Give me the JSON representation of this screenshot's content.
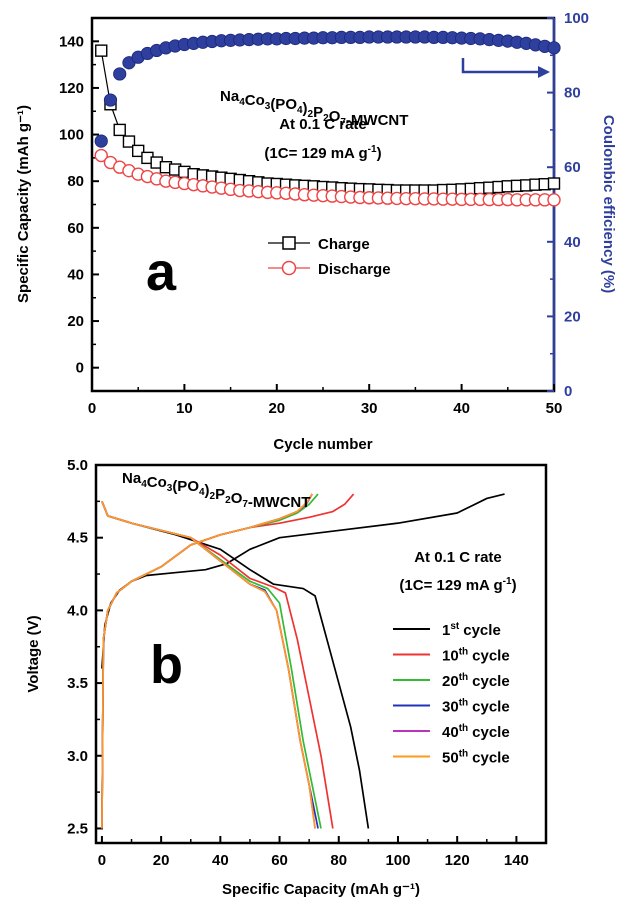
{
  "chart_data": [
    {
      "panel": "a",
      "type": "scatter",
      "xlabel": "Cycle number",
      "ylabel": "Specific Capacity (mAh g⁻¹)",
      "y2label": "Coulombic efficiency (%)",
      "xlim": [
        0,
        50
      ],
      "ylim": [
        -10,
        150
      ],
      "y2lim": [
        0,
        100
      ],
      "xticks": [
        "0",
        "10",
        "20",
        "30",
        "40",
        "50"
      ],
      "yticks": [
        "0",
        "20",
        "40",
        "60",
        "80",
        "100",
        "120",
        "140"
      ],
      "y2ticks": [
        "0",
        "20",
        "40",
        "60",
        "80",
        "100"
      ],
      "annotations": {
        "material_prefix": "Na",
        "material_parts": [
          {
            "t": "Na",
            "s": "4"
          },
          {
            "t": "Co",
            "s": "3"
          },
          {
            "t": "(PO",
            "s": "4"
          },
          {
            "t": ")",
            "s": "2"
          },
          {
            "t": "P",
            "s": "2"
          },
          {
            "t": "O",
            "s": "7"
          },
          {
            "t": "-MWCNT",
            "s": ""
          }
        ],
        "rate": "At 0.1 C rate",
        "rate_def": "(1C= 129 mA g",
        "rate_def_sup": "-1",
        "rate_def_end": ")"
      },
      "series": [
        {
          "name": "Charge",
          "marker": "open-square",
          "color": "#000000",
          "x": [
            1,
            2,
            3,
            4,
            5,
            6,
            7,
            8,
            9,
            10,
            11,
            12,
            13,
            14,
            15,
            16,
            17,
            18,
            19,
            20,
            21,
            22,
            23,
            24,
            25,
            26,
            27,
            28,
            29,
            30,
            31,
            32,
            33,
            34,
            35,
            36,
            37,
            38,
            39,
            40,
            41,
            42,
            43,
            44,
            45,
            46,
            47,
            48,
            49,
            50
          ],
          "values": [
            136,
            113,
            102,
            97,
            93,
            90,
            88,
            86,
            85,
            84,
            83,
            82.5,
            82,
            81.5,
            81,
            80.5,
            80,
            79.5,
            79,
            78.8,
            78.5,
            78.2,
            78,
            77.8,
            77.5,
            77.3,
            77,
            76.8,
            76.6,
            76.5,
            76.3,
            76.2,
            76,
            76,
            76,
            76,
            76,
            76.2,
            76.3,
            76.5,
            76.7,
            77,
            77.2,
            77.5,
            77.8,
            78,
            78.2,
            78.5,
            78.7,
            79
          ]
        },
        {
          "name": "Discharge",
          "marker": "open-circle",
          "color": "#ee4444",
          "x": [
            1,
            2,
            3,
            4,
            5,
            6,
            7,
            8,
            9,
            10,
            11,
            12,
            13,
            14,
            15,
            16,
            17,
            18,
            19,
            20,
            21,
            22,
            23,
            24,
            25,
            26,
            27,
            28,
            29,
            30,
            31,
            32,
            33,
            34,
            35,
            36,
            37,
            38,
            39,
            40,
            41,
            42,
            43,
            44,
            45,
            46,
            47,
            48,
            49,
            50
          ],
          "values": [
            91,
            88,
            86,
            84.5,
            83,
            82,
            81,
            80,
            79.5,
            79,
            78.5,
            78,
            77.5,
            77,
            76.5,
            76,
            75.8,
            75.5,
            75.2,
            75,
            74.8,
            74.5,
            74.2,
            74,
            73.8,
            73.6,
            73.4,
            73.2,
            73,
            72.9,
            72.8,
            72.7,
            72.6,
            72.5,
            72.5,
            72.4,
            72.4,
            72.3,
            72.3,
            72.2,
            72.2,
            72.2,
            72.1,
            72.1,
            72.1,
            72,
            72,
            72,
            72,
            72
          ]
        },
        {
          "name": "Coulombic efficiency",
          "axis": "right",
          "marker": "filled-circle",
          "color": "#2e3f9e",
          "x": [
            1,
            2,
            3,
            4,
            5,
            6,
            7,
            8,
            9,
            10,
            11,
            12,
            13,
            14,
            15,
            16,
            17,
            18,
            19,
            20,
            21,
            22,
            23,
            24,
            25,
            26,
            27,
            28,
            29,
            30,
            31,
            32,
            33,
            34,
            35,
            36,
            37,
            38,
            39,
            40,
            41,
            42,
            43,
            44,
            45,
            46,
            47,
            48,
            49,
            50
          ],
          "values": [
            67,
            78,
            85,
            88,
            89.5,
            90.5,
            91.3,
            92,
            92.5,
            92.9,
            93.2,
            93.5,
            93.7,
            93.9,
            94,
            94.1,
            94.2,
            94.3,
            94.4,
            94.4,
            94.5,
            94.5,
            94.6,
            94.6,
            94.7,
            94.7,
            94.8,
            94.8,
            94.8,
            94.9,
            94.9,
            94.9,
            94.9,
            94.9,
            94.9,
            94.9,
            94.8,
            94.8,
            94.7,
            94.6,
            94.5,
            94.4,
            94.2,
            94,
            93.8,
            93.5,
            93.2,
            92.8,
            92.4,
            92
          ]
        }
      ]
    },
    {
      "panel": "b",
      "type": "line",
      "xlabel": "Specific Capacity (mAh g⁻¹)",
      "ylabel": "Voltage (V)",
      "xlim": [
        -2,
        150
      ],
      "ylim": [
        2.4,
        5.0
      ],
      "xticks": [
        "0",
        "20",
        "40",
        "60",
        "80",
        "100",
        "120",
        "140"
      ],
      "yticks": [
        "2.5",
        "3.0",
        "3.5",
        "4.0",
        "4.5",
        "5.0"
      ],
      "annotations": {
        "rate": "At 0.1 C rate",
        "rate_def": "(1C= 129 mA g",
        "rate_def_sup": "-1",
        "rate_def_end": ")"
      },
      "series": [
        {
          "name": "1st cycle",
          "label_num": "1",
          "label_sup": "st",
          "label_rest": "cycle",
          "color": "#000000",
          "charge": [
            [
              0,
              3.6
            ],
            [
              1,
              3.9
            ],
            [
              3,
              4.05
            ],
            [
              6,
              4.14
            ],
            [
              10,
              4.2
            ],
            [
              15,
              4.24
            ],
            [
              25,
              4.26
            ],
            [
              35,
              4.28
            ],
            [
              42,
              4.32
            ],
            [
              50,
              4.42
            ],
            [
              60,
              4.5
            ],
            [
              80,
              4.55
            ],
            [
              100,
              4.6
            ],
            [
              120,
              4.67
            ],
            [
              125,
              4.72
            ],
            [
              130,
              4.77
            ],
            [
              136,
              4.8
            ]
          ],
          "discharge": [
            [
              0,
              4.75
            ],
            [
              2,
              4.65
            ],
            [
              10,
              4.6
            ],
            [
              25,
              4.52
            ],
            [
              40,
              4.42
            ],
            [
              50,
              4.28
            ],
            [
              58,
              4.18
            ],
            [
              68,
              4.15
            ],
            [
              72,
              4.1
            ],
            [
              76,
              3.8
            ],
            [
              80,
              3.5
            ],
            [
              84,
              3.2
            ],
            [
              87,
              2.9
            ],
            [
              90,
              2.5
            ]
          ]
        },
        {
          "name": "10th cycle",
          "label_num": "10",
          "label_sup": "th",
          "label_rest": "cycle",
          "color": "#ee3333",
          "charge": [
            [
              0,
              2.5
            ],
            [
              0.5,
              3.8
            ],
            [
              2,
              4.0
            ],
            [
              5,
              4.12
            ],
            [
              10,
              4.2
            ],
            [
              20,
              4.3
            ],
            [
              30,
              4.45
            ],
            [
              40,
              4.52
            ],
            [
              50,
              4.57
            ],
            [
              60,
              4.6
            ],
            [
              70,
              4.64
            ],
            [
              78,
              4.68
            ],
            [
              82,
              4.73
            ],
            [
              85,
              4.8
            ]
          ],
          "discharge": [
            [
              0,
              4.75
            ],
            [
              2,
              4.65
            ],
            [
              10,
              4.6
            ],
            [
              20,
              4.55
            ],
            [
              30,
              4.5
            ],
            [
              40,
              4.38
            ],
            [
              50,
              4.22
            ],
            [
              58,
              4.16
            ],
            [
              62,
              4.12
            ],
            [
              66,
              3.8
            ],
            [
              70,
              3.4
            ],
            [
              74,
              3.0
            ],
            [
              78,
              2.5
            ]
          ]
        },
        {
          "name": "20th cycle",
          "label_num": "20",
          "label_sup": "th",
          "label_rest": "cycle",
          "color": "#33bb33",
          "charge": [
            [
              0,
              2.5
            ],
            [
              0.5,
              3.8
            ],
            [
              2,
              4.0
            ],
            [
              5,
              4.12
            ],
            [
              10,
              4.2
            ],
            [
              20,
              4.3
            ],
            [
              30,
              4.45
            ],
            [
              40,
              4.52
            ],
            [
              50,
              4.57
            ],
            [
              60,
              4.62
            ],
            [
              66,
              4.67
            ],
            [
              70,
              4.73
            ],
            [
              73,
              4.8
            ]
          ],
          "discharge": [
            [
              0,
              4.75
            ],
            [
              2,
              4.65
            ],
            [
              10,
              4.6
            ],
            [
              20,
              4.55
            ],
            [
              30,
              4.5
            ],
            [
              40,
              4.35
            ],
            [
              50,
              4.2
            ],
            [
              56,
              4.15
            ],
            [
              60,
              4.05
            ],
            [
              64,
              3.6
            ],
            [
              68,
              3.1
            ],
            [
              71,
              2.8
            ],
            [
              74,
              2.5
            ]
          ]
        },
        {
          "name": "30th cycle",
          "label_num": "30",
          "label_sup": "th",
          "label_rest": "cycle",
          "color": "#2233bb",
          "charge": [
            [
              0,
              2.5
            ],
            [
              0.5,
              3.8
            ],
            [
              2,
              4.0
            ],
            [
              5,
              4.12
            ],
            [
              10,
              4.2
            ],
            [
              20,
              4.3
            ],
            [
              30,
              4.45
            ],
            [
              40,
              4.52
            ],
            [
              50,
              4.57
            ],
            [
              60,
              4.63
            ],
            [
              66,
              4.68
            ],
            [
              69,
              4.73
            ],
            [
              71,
              4.8
            ]
          ],
          "discharge": [
            [
              0,
              4.75
            ],
            [
              2,
              4.65
            ],
            [
              10,
              4.6
            ],
            [
              20,
              4.55
            ],
            [
              30,
              4.5
            ],
            [
              40,
              4.34
            ],
            [
              50,
              4.18
            ],
            [
              55,
              4.14
            ],
            [
              59,
              4.0
            ],
            [
              63,
              3.6
            ],
            [
              67,
              3.1
            ],
            [
              70,
              2.8
            ],
            [
              73,
              2.5
            ]
          ]
        },
        {
          "name": "40th cycle",
          "label_num": "40",
          "label_sup": "th",
          "label_rest": "cycle",
          "color": "#bb33bb",
          "charge": [
            [
              0,
              2.5
            ],
            [
              0.5,
              3.8
            ],
            [
              2,
              4.0
            ],
            [
              5,
              4.12
            ],
            [
              10,
              4.2
            ],
            [
              20,
              4.3
            ],
            [
              30,
              4.45
            ],
            [
              40,
              4.52
            ],
            [
              50,
              4.57
            ],
            [
              60,
              4.63
            ],
            [
              66,
              4.68
            ],
            [
              69,
              4.73
            ],
            [
              71,
              4.8
            ]
          ],
          "discharge": [
            [
              0,
              4.75
            ],
            [
              2,
              4.65
            ],
            [
              10,
              4.6
            ],
            [
              20,
              4.55
            ],
            [
              30,
              4.5
            ],
            [
              40,
              4.34
            ],
            [
              50,
              4.18
            ],
            [
              55,
              4.13
            ],
            [
              59,
              4.0
            ],
            [
              63,
              3.6
            ],
            [
              67,
              3.1
            ],
            [
              70,
              2.8
            ],
            [
              72,
              2.5
            ]
          ]
        },
        {
          "name": "50th cycle",
          "label_num": "50",
          "label_sup": "th",
          "label_rest": "cycle",
          "color": "#ff9922",
          "charge": [
            [
              0,
              2.5
            ],
            [
              0.5,
              3.8
            ],
            [
              2,
              4.0
            ],
            [
              5,
              4.12
            ],
            [
              10,
              4.2
            ],
            [
              20,
              4.3
            ],
            [
              30,
              4.45
            ],
            [
              40,
              4.52
            ],
            [
              50,
              4.57
            ],
            [
              60,
              4.63
            ],
            [
              66,
              4.68
            ],
            [
              69,
              4.74
            ],
            [
              71,
              4.8
            ]
          ],
          "discharge": [
            [
              0,
              4.75
            ],
            [
              2,
              4.65
            ],
            [
              10,
              4.6
            ],
            [
              20,
              4.55
            ],
            [
              30,
              4.5
            ],
            [
              40,
              4.34
            ],
            [
              50,
              4.18
            ],
            [
              55,
              4.13
            ],
            [
              59,
              4.0
            ],
            [
              63,
              3.6
            ],
            [
              67,
              3.1
            ],
            [
              70,
              2.8
            ],
            [
              72,
              2.5
            ]
          ]
        }
      ]
    }
  ],
  "labels": {
    "panel_a": "a",
    "panel_b": "b",
    "legend_charge": "Charge",
    "legend_discharge": "Discharge"
  }
}
